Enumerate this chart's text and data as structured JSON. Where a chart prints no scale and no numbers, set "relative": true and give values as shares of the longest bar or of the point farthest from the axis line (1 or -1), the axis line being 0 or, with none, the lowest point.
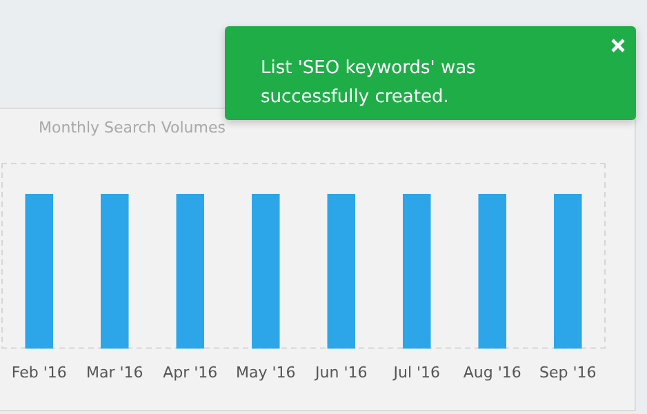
{
  "chart_data": {
    "type": "bar",
    "title": "Monthly Search Volumes",
    "categories": [
      "Feb '16",
      "Mar '16",
      "Apr '16",
      "May '16",
      "Jun '16",
      "Jul '16",
      "Aug '16",
      "Sep '16"
    ],
    "values": [
      1,
      1,
      1,
      1,
      1,
      1,
      1,
      1
    ],
    "color": "#2ca6e8",
    "relative": true,
    "annotations": [
      "List 'SEO keywords' was successfully created."
    ]
  }
}
